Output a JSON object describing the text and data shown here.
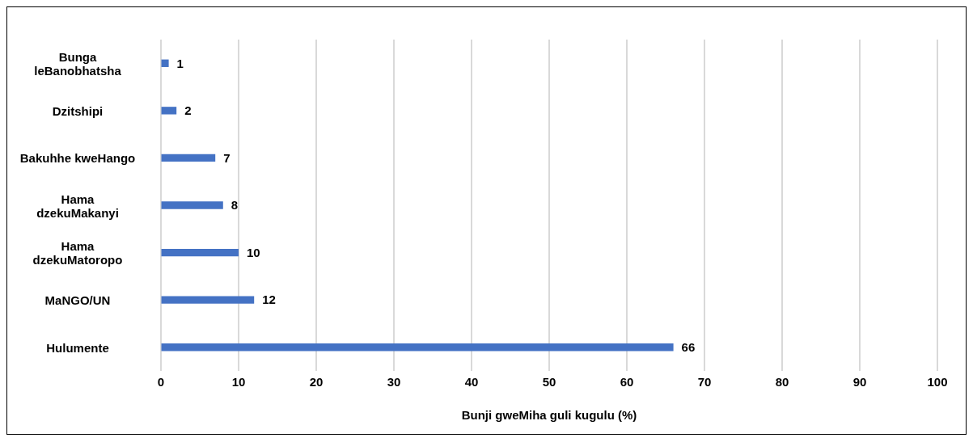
{
  "chart_data": {
    "type": "bar",
    "orientation": "horizontal",
    "xlabel": "Bunji gweMiha guli kugulu (%)",
    "categories": [
      "Bunga leBanobhatsha",
      "Dzitshipi",
      "Bakuhhe kweHango",
      "Hama dzekuMakanyi",
      "Hama dzekuMatoropo",
      "MaNGO/UN",
      "Hulumente"
    ],
    "values": [
      1,
      2,
      7,
      8,
      10,
      12,
      66
    ],
    "color": "#4472c4",
    "xlim": [
      0,
      100
    ],
    "xticks": [
      0,
      10,
      20,
      30,
      40,
      50,
      60,
      70,
      80,
      90,
      100
    ],
    "grid": "x",
    "data_labels": true
  }
}
